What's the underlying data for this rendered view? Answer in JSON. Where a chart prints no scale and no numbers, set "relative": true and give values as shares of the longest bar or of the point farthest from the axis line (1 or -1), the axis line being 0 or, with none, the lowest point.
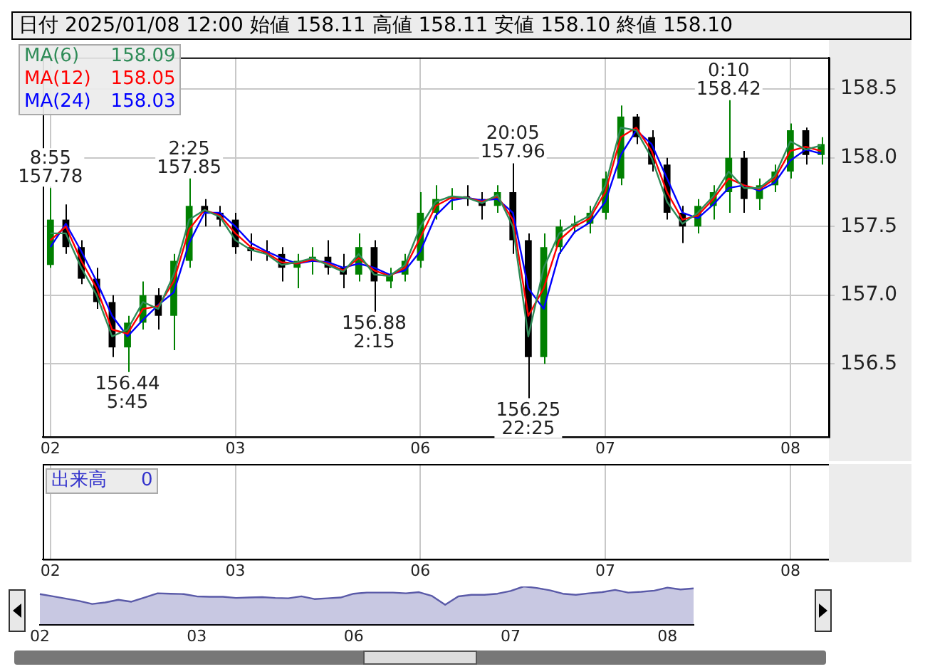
{
  "chart_data": [
    {
      "type": "candlestick",
      "title": "日付 2025/01/08 12:00 始値 158.11 高値 158.11 安値 158.10 終値 158.10",
      "categories": [
        "02",
        null,
        null,
        null,
        null,
        null,
        null,
        null,
        null,
        null,
        null,
        null,
        "03",
        null,
        null,
        null,
        null,
        null,
        null,
        null,
        null,
        null,
        null,
        null,
        "06",
        null,
        null,
        null,
        null,
        null,
        null,
        null,
        null,
        null,
        null,
        null,
        "07",
        null,
        null,
        null,
        null,
        null,
        null,
        null,
        null,
        null,
        null,
        null,
        "08",
        null,
        null
      ],
      "ohlc": [
        [
          157.22,
          157.78,
          157.2,
          157.55
        ],
        [
          157.55,
          157.66,
          157.3,
          157.35
        ],
        [
          157.35,
          157.4,
          157.08,
          157.12
        ],
        [
          157.12,
          157.2,
          156.9,
          156.95
        ],
        [
          156.95,
          157.0,
          156.55,
          156.62
        ],
        [
          156.62,
          156.85,
          156.44,
          156.8
        ],
        [
          156.8,
          157.1,
          156.75,
          157.0
        ],
        [
          157.0,
          157.05,
          156.75,
          156.85
        ],
        [
          156.85,
          157.3,
          156.6,
          157.25
        ],
        [
          157.25,
          157.85,
          157.2,
          157.65
        ],
        [
          157.65,
          157.7,
          157.5,
          157.6
        ],
        [
          157.6,
          157.65,
          157.5,
          157.55
        ],
        [
          157.55,
          157.6,
          157.3,
          157.35
        ],
        [
          157.35,
          157.45,
          157.25,
          157.32
        ],
        [
          157.32,
          157.4,
          157.25,
          157.3
        ],
        [
          157.3,
          157.35,
          157.1,
          157.2
        ],
        [
          157.2,
          157.3,
          157.05,
          157.25
        ],
        [
          157.25,
          157.35,
          157.15,
          157.28
        ],
        [
          157.28,
          157.4,
          157.15,
          157.2
        ],
        [
          157.2,
          157.3,
          157.05,
          157.15
        ],
        [
          157.15,
          157.45,
          157.1,
          157.35
        ],
        [
          157.35,
          157.4,
          156.88,
          157.1
        ],
        [
          157.1,
          157.2,
          157.05,
          157.15
        ],
        [
          157.15,
          157.3,
          157.1,
          157.25
        ],
        [
          157.25,
          157.75,
          157.2,
          157.6
        ],
        [
          157.6,
          157.8,
          157.55,
          157.7
        ],
        [
          157.7,
          157.78,
          157.62,
          157.72
        ],
        [
          157.72,
          157.8,
          157.65,
          157.7
        ],
        [
          157.7,
          157.75,
          157.55,
          157.65
        ],
        [
          157.65,
          157.8,
          157.6,
          157.75
        ],
        [
          157.75,
          157.96,
          157.3,
          157.4
        ],
        [
          157.4,
          157.45,
          156.25,
          156.55
        ],
        [
          156.55,
          157.45,
          156.5,
          157.35
        ],
        [
          157.35,
          157.55,
          157.3,
          157.5
        ],
        [
          157.5,
          157.58,
          157.45,
          157.52
        ],
        [
          157.52,
          157.65,
          157.45,
          157.6
        ],
        [
          157.6,
          157.9,
          157.55,
          157.85
        ],
        [
          157.85,
          158.38,
          157.8,
          158.3
        ],
        [
          158.3,
          158.32,
          158.1,
          158.15
        ],
        [
          158.15,
          158.2,
          157.9,
          157.95
        ],
        [
          157.95,
          158.0,
          157.55,
          157.6
        ],
        [
          157.6,
          157.65,
          157.38,
          157.5
        ],
        [
          157.5,
          157.7,
          157.45,
          157.65
        ],
        [
          157.65,
          157.8,
          157.55,
          157.75
        ],
        [
          157.75,
          158.42,
          157.6,
          158.0
        ],
        [
          158.0,
          158.05,
          157.6,
          157.7
        ],
        [
          157.7,
          157.85,
          157.62,
          157.8
        ],
        [
          157.8,
          157.95,
          157.75,
          157.9
        ],
        [
          157.9,
          158.25,
          157.85,
          158.2
        ],
        [
          158.2,
          158.22,
          157.95,
          158.02
        ],
        [
          158.02,
          158.15,
          157.95,
          158.1
        ]
      ],
      "colors": [
        "#008000",
        "#000000",
        "#000000",
        "#000000",
        "#000000",
        "#008000",
        "#008000",
        "#000000",
        "#008000",
        "#008000",
        "#000000",
        "#000000",
        "#000000",
        "#000000",
        "#000000",
        "#000000",
        "#008000",
        "#008000",
        "#000000",
        "#000000",
        "#008000",
        "#000000",
        "#008000",
        "#008000",
        "#008000",
        "#008000",
        "#008000",
        "#000000",
        "#000000",
        "#008000",
        "#000000",
        "#000000",
        "#008000",
        "#008000",
        "#008000",
        "#008000",
        "#008000",
        "#008000",
        "#000000",
        "#000000",
        "#000000",
        "#000000",
        "#008000",
        "#008000",
        "#008000",
        "#000000",
        "#008000",
        "#008000",
        "#008000",
        "#000000",
        "#008000"
      ],
      "series": [
        {
          "type": "line",
          "name": "MA(6)",
          "color": "#2e8b57",
          "values": [
            157.45,
            157.45,
            157.2,
            157.0,
            156.7,
            156.75,
            156.95,
            156.9,
            157.15,
            157.55,
            157.62,
            157.57,
            157.4,
            157.33,
            157.3,
            157.22,
            157.24,
            157.27,
            157.22,
            157.17,
            157.3,
            157.15,
            157.14,
            157.22,
            157.5,
            157.68,
            157.72,
            157.71,
            157.67,
            157.73,
            157.5,
            156.7,
            157.2,
            157.45,
            157.52,
            157.58,
            157.8,
            158.22,
            158.2,
            158.0,
            157.68,
            157.52,
            157.6,
            157.72,
            157.9,
            157.78,
            157.78,
            157.87,
            158.12,
            158.06,
            158.09
          ]
        },
        {
          "type": "line",
          "name": "MA(12)",
          "color": "#ff0000",
          "values": [
            157.4,
            157.5,
            157.25,
            157.05,
            156.75,
            156.72,
            156.9,
            156.92,
            157.1,
            157.48,
            157.62,
            157.58,
            157.45,
            157.35,
            157.31,
            157.24,
            157.23,
            157.26,
            157.23,
            157.18,
            157.27,
            157.18,
            157.14,
            157.2,
            157.42,
            157.65,
            157.71,
            157.71,
            157.68,
            157.72,
            157.55,
            156.85,
            157.05,
            157.4,
            157.5,
            157.56,
            157.75,
            158.15,
            158.22,
            158.05,
            157.75,
            157.55,
            157.58,
            157.7,
            157.85,
            157.8,
            157.77,
            157.85,
            158.05,
            158.08,
            158.05
          ]
        },
        {
          "type": "line",
          "name": "MA(24)",
          "color": "#0000ff",
          "values": [
            157.35,
            157.52,
            157.32,
            157.1,
            156.85,
            156.7,
            156.82,
            156.93,
            157.02,
            157.38,
            157.6,
            157.6,
            157.5,
            157.38,
            157.32,
            157.27,
            157.23,
            157.25,
            157.24,
            157.2,
            157.23,
            157.2,
            157.15,
            157.18,
            157.32,
            157.58,
            157.69,
            157.71,
            157.69,
            157.7,
            157.6,
            157.05,
            156.9,
            157.3,
            157.46,
            157.53,
            157.68,
            158.02,
            158.2,
            158.1,
            157.85,
            157.6,
            157.56,
            157.66,
            157.78,
            157.8,
            157.76,
            157.82,
            157.98,
            158.06,
            158.03
          ]
        }
      ],
      "annotations": [
        "158.09",
        "158.05",
        "158.03",
        {
          "text": "8:55\n157.78",
          "y": 157.78
        },
        {
          "text": "2:25\n157.85",
          "y": 157.85
        },
        {
          "text": "156.44\n5:45",
          "y": 156.44
        },
        {
          "text": "156.88\n2:15",
          "y": 156.88
        },
        {
          "text": "20:05\n157.96",
          "y": 157.96
        },
        {
          "text": "156.25\n22:25",
          "y": 156.25
        },
        {
          "text": "0:10\n158.42",
          "y": 158.42
        }
      ],
      "ylim": [
        155.97,
        158.73
      ],
      "yticks": [
        {
          "value": 156.5,
          "label": "156.5"
        },
        {
          "value": 157,
          "label": "157.0"
        },
        {
          "value": 157.5,
          "label": "157.5"
        },
        {
          "value": 158,
          "label": "158.0"
        },
        {
          "value": 158.5,
          "label": "158.5"
        }
      ],
      "grid": true,
      "legend": "top left",
      "marker": "none"
    },
    {
      "type": "other",
      "categories": [
        "02",
        null,
        null,
        null,
        null,
        null,
        null,
        null,
        null,
        null,
        null,
        null,
        "03",
        null,
        null,
        null,
        null,
        null,
        null,
        null,
        null,
        null,
        null,
        null,
        "06",
        null,
        null,
        null,
        null,
        null,
        null,
        null,
        null,
        null,
        null,
        null,
        "07",
        null,
        null,
        null,
        null,
        null,
        null,
        null,
        null,
        null,
        null,
        null,
        "08",
        null,
        null
      ],
      "annotations": [
        "出来高",
        "0"
      ]
    },
    {
      "type": "area",
      "relative": true,
      "categories": [
        "02",
        null,
        null,
        null,
        null,
        null,
        null,
        null,
        null,
        null,
        null,
        null,
        "03",
        null,
        null,
        null,
        null,
        null,
        null,
        null,
        null,
        null,
        null,
        null,
        "06",
        null,
        null,
        null,
        null,
        null,
        null,
        null,
        null,
        null,
        null,
        null,
        "07",
        null,
        null,
        null,
        null,
        null,
        null,
        null,
        null,
        null,
        null,
        null,
        "08",
        null,
        null
      ],
      "color": "#5a5aa8",
      "values": [
        0.8,
        0.74,
        0.68,
        0.62,
        0.54,
        0.58,
        0.65,
        0.6,
        0.71,
        0.82,
        0.81,
        0.8,
        0.74,
        0.73,
        0.73,
        0.7,
        0.71,
        0.72,
        0.7,
        0.69,
        0.74,
        0.67,
        0.69,
        0.71,
        0.81,
        0.84,
        0.84,
        0.84,
        0.82,
        0.85,
        0.75,
        0.52,
        0.74,
        0.78,
        0.78,
        0.81,
        0.88,
        1,
        0.96,
        0.9,
        0.81,
        0.78,
        0.82,
        0.85,
        0.91,
        0.84,
        0.86,
        0.89,
        0.97,
        0.92,
        0.95
      ]
    }
  ]
}
